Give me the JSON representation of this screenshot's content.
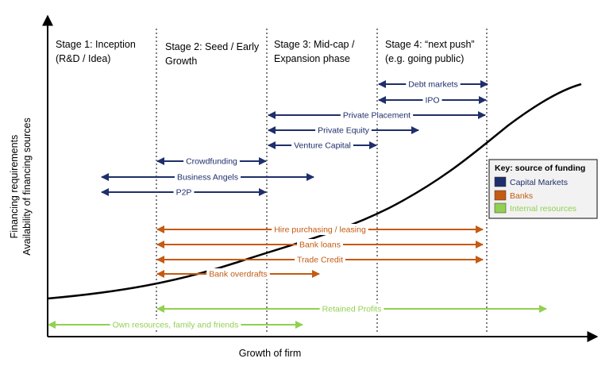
{
  "axes": {
    "x_label": "Growth of firm",
    "y_label_line1": "Financing requirements",
    "y_label_line2": "Availability of financing sources"
  },
  "stages": [
    {
      "line1": "Stage 1: Inception",
      "line2": "(R&D / Idea)"
    },
    {
      "line1": "Stage 2: Seed / Early",
      "line2": "Growth"
    },
    {
      "line1": "Stage 3: Mid-cap /",
      "line2": "Expansion phase"
    },
    {
      "line1": "Stage 4: “next push”",
      "line2": "(e.g. going public)"
    }
  ],
  "sources": [
    {
      "label": "Debt markets",
      "category": "capital_markets"
    },
    {
      "label": "IPO",
      "category": "capital_markets"
    },
    {
      "label": "Private Placement",
      "category": "capital_markets"
    },
    {
      "label": "Private Equity",
      "category": "capital_markets"
    },
    {
      "label": "Venture Capital",
      "category": "capital_markets"
    },
    {
      "label": "Crowdfunding",
      "category": "capital_markets"
    },
    {
      "label": "Business Angels",
      "category": "capital_markets"
    },
    {
      "label": "P2P",
      "category": "capital_markets"
    },
    {
      "label": "Hire purchasing / leasing",
      "category": "banks"
    },
    {
      "label": "Bank loans",
      "category": "banks"
    },
    {
      "label": "Trade Credit",
      "category": "banks"
    },
    {
      "label": "Bank overdrafts",
      "category": "banks"
    },
    {
      "label": "Retained Profits",
      "category": "internal"
    },
    {
      "label": "Own resources, family and friends",
      "category": "internal"
    }
  ],
  "key": {
    "title": "Key: source of funding",
    "items": [
      {
        "label": "Capital Markets",
        "category": "capital_markets"
      },
      {
        "label": "Banks",
        "category": "banks"
      },
      {
        "label": "Internal resources",
        "category": "internal"
      }
    ]
  },
  "colors": {
    "capital_markets": "#1f2f6b",
    "banks": "#c55a11",
    "internal": "#92d050",
    "curve": "#000000",
    "divider": "#555555"
  }
}
